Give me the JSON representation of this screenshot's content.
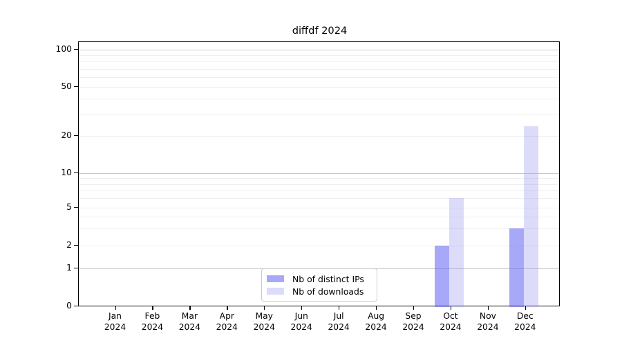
{
  "chart_data": {
    "type": "bar",
    "title": "diffdf 2024",
    "categories": [
      "Jan",
      "Feb",
      "Mar",
      "Apr",
      "May",
      "Jun",
      "Jul",
      "Aug",
      "Sep",
      "Oct",
      "Nov",
      "Dec"
    ],
    "x_year": "2024",
    "series": [
      {
        "name": "Nb of distinct IPs",
        "color": "#a8a8f8",
        "values": [
          0,
          0,
          0,
          0,
          0,
          0,
          0,
          0,
          0,
          2,
          0,
          3
        ]
      },
      {
        "name": "Nb of downloads",
        "color": "#dcdcfa",
        "values": [
          0,
          0,
          0,
          0,
          0,
          0,
          0,
          0,
          0,
          6,
          0,
          24
        ]
      }
    ],
    "yticks": [
      0,
      1,
      2,
      5,
      10,
      20,
      50,
      100
    ],
    "yminor_gridlines": [
      2,
      3,
      4,
      5,
      6,
      7,
      8,
      9,
      20,
      30,
      40,
      50,
      60,
      70,
      80,
      90
    ],
    "ymajor_gridlines": [
      1,
      10,
      100
    ],
    "ylim": [
      0,
      114
    ],
    "yscale": "log-like with 0 baseline",
    "grid": true,
    "legend_position": "lower center",
    "colors": {
      "major_grid": "#c9c9c9",
      "minor_grid": "#efefef",
      "axis": "#000000"
    }
  }
}
